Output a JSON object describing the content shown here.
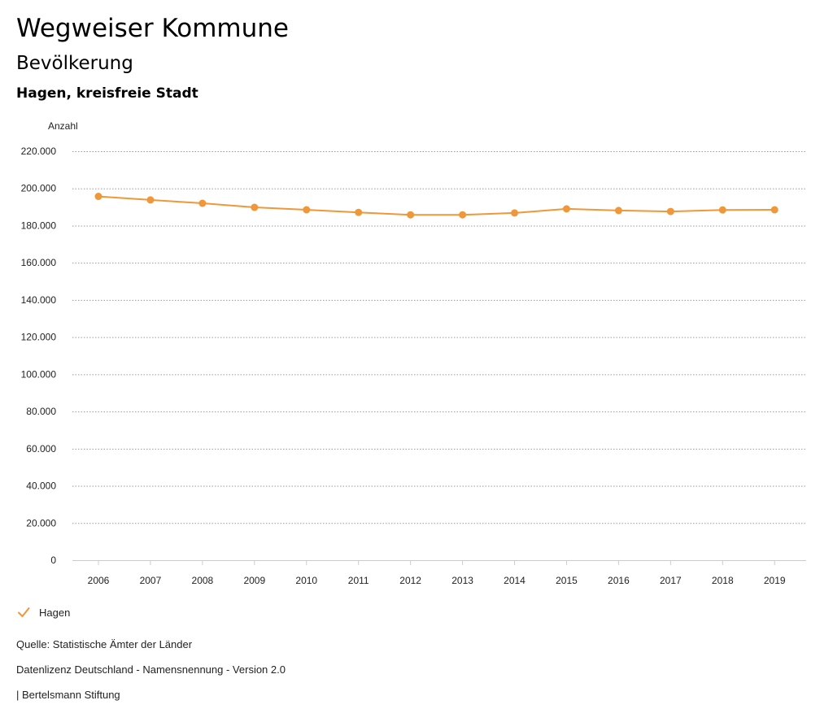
{
  "header": {
    "title": "Wegweiser Kommune",
    "subtitle": "Bevölkerung",
    "region": "Hagen, kreisfreie Stadt"
  },
  "colors": {
    "series": "#f0973a",
    "grid": "#9a9a9a",
    "axis": "#cccccc"
  },
  "chart_data": {
    "type": "line",
    "title": "Bevölkerung",
    "ylabel": "Anzahl",
    "xlabel": "",
    "ylim": [
      0,
      220000
    ],
    "yticks": [
      0,
      20000,
      40000,
      60000,
      80000,
      100000,
      120000,
      140000,
      160000,
      180000,
      200000,
      220000
    ],
    "ytick_labels": [
      "0",
      "20.000",
      "40.000",
      "60.000",
      "80.000",
      "100.000",
      "120.000",
      "140.000",
      "160.000",
      "180.000",
      "200.000",
      "220.000"
    ],
    "x": [
      "2006",
      "2007",
      "2008",
      "2009",
      "2010",
      "2011",
      "2012",
      "2013",
      "2014",
      "2015",
      "2016",
      "2017",
      "2018",
      "2019"
    ],
    "series": [
      {
        "name": "Hagen",
        "values": [
          195700,
          193800,
          192000,
          189800,
          188500,
          187100,
          185800,
          185800,
          186800,
          189000,
          188100,
          187600,
          188400,
          188500
        ]
      }
    ],
    "grid": true,
    "legend_position": "bottom-left"
  },
  "legend": {
    "label": "Hagen",
    "icon": "check-icon"
  },
  "footer": {
    "source": "Quelle: Statistische Ämter der Länder",
    "license": "Datenlizenz Deutschland - Namensnennung - Version 2.0",
    "publisher": "| Bertelsmann Stiftung"
  }
}
